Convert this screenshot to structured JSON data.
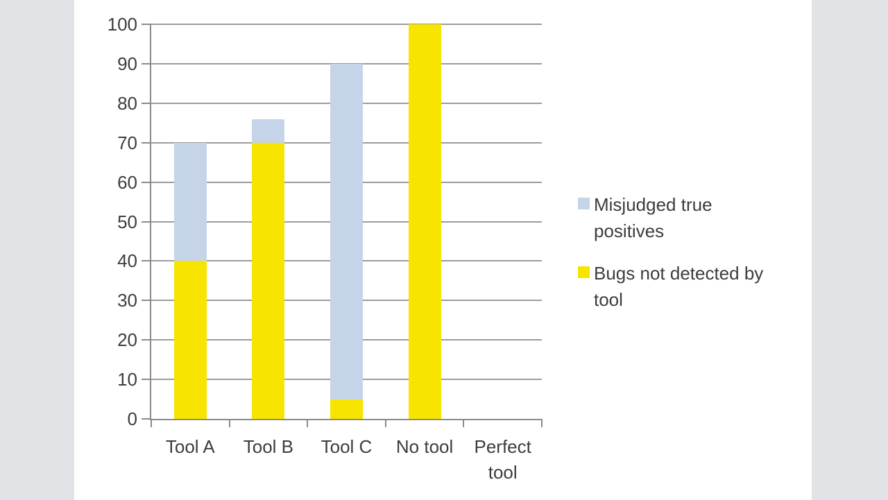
{
  "page": {
    "background": "#ffffff",
    "side_strip_color": "#e1e3e6"
  },
  "chart_data": {
    "type": "bar",
    "stacked": true,
    "title": "",
    "xlabel": "",
    "ylabel": "",
    "categories": [
      "Tool A",
      "Tool B",
      "Tool C",
      "No tool",
      "Perfect tool"
    ],
    "series": [
      {
        "name": "Misjudged true positives",
        "color": "#c5d4e9",
        "values": [
          30,
          6,
          85,
          0,
          0
        ]
      },
      {
        "name": "Bugs not detected by tool",
        "color": "#f7e400",
        "values": [
          40,
          70,
          5,
          100,
          0
        ]
      }
    ],
    "stack_order_bottom_to_top": [
      1,
      0
    ],
    "totals": [
      70,
      76,
      90,
      100,
      0
    ],
    "ylim": [
      0,
      100
    ],
    "y_tick_step": 10,
    "y_tick_labels": [
      "0",
      "10",
      "20",
      "30",
      "40",
      "50",
      "60",
      "70",
      "80",
      "90",
      "100"
    ],
    "grid": true,
    "legend_position": "right",
    "colors": {
      "gridline": "#9b9b9b",
      "axis": "#8a8a8a",
      "text": "#3d3d3d"
    }
  }
}
